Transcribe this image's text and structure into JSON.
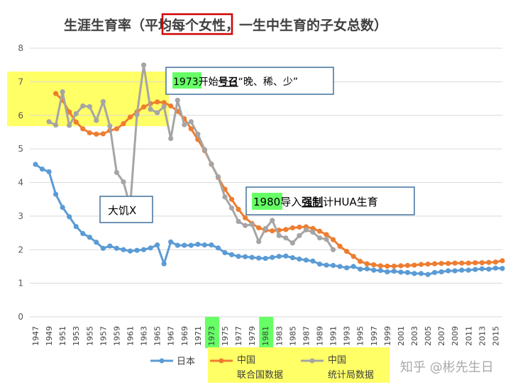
{
  "title": {
    "before": "生涯生育率（",
    "boxed": "平均每个",
    "after": "女性，一生中生育的子女总数）"
  },
  "annotations": {
    "a1973": {
      "year": "1973",
      "before": "开始",
      "bold": "号召",
      "after": "“晚、稀、少”"
    },
    "famine": {
      "text": "大饥X"
    },
    "a1980": {
      "year": "1980",
      "before": "导入",
      "bold": "强制",
      "after": "计HUA生育"
    }
  },
  "highlight_years": [
    "1973",
    "1981"
  ],
  "watermark": "知乎 @彬先生日",
  "colors": {
    "japan": "#5b9bd5",
    "china_un": "#ed7d31",
    "china_stats": "#a5a5a5",
    "highlight_yellow": "#ffff66",
    "highlight_green": "#66ff66",
    "box_red": "#d00000",
    "box_border": "#41719c"
  },
  "chart_data": {
    "type": "line",
    "title": "生涯生育率（平均每个女性，一生中生育的子女总数）",
    "xlabel": "",
    "ylabel": "",
    "ylim": [
      0,
      8
    ],
    "y_ticks": [
      0,
      1,
      2,
      3,
      4,
      5,
      6,
      7,
      8
    ],
    "x_range": [
      1947,
      2016
    ],
    "x_tick_labels": [
      "1947",
      "1949",
      "1951",
      "1953",
      "1955",
      "1957",
      "1959",
      "1961",
      "1963",
      "1965",
      "1967",
      "1969",
      "1971",
      "1973",
      "1975",
      "1977",
      "1979",
      "1981",
      "1983",
      "1985",
      "1987",
      "1989",
      "1991",
      "1993",
      "1995",
      "1997",
      "1999",
      "2001",
      "2003",
      "2005",
      "2007",
      "2009",
      "2011",
      "2013",
      "2015"
    ],
    "grid": true,
    "legend_position": "bottom",
    "series": [
      {
        "name": "日本",
        "color": "#5b9bd5",
        "x": [
          1947,
          1948,
          1949,
          1950,
          1951,
          1952,
          1953,
          1954,
          1955,
          1956,
          1957,
          1958,
          1959,
          1960,
          1961,
          1962,
          1963,
          1964,
          1965,
          1966,
          1967,
          1968,
          1969,
          1970,
          1971,
          1972,
          1973,
          1974,
          1975,
          1976,
          1977,
          1978,
          1979,
          1980,
          1981,
          1982,
          1983,
          1984,
          1985,
          1986,
          1987,
          1988,
          1989,
          1990,
          1991,
          1992,
          1993,
          1994,
          1995,
          1996,
          1997,
          1998,
          1999,
          2000,
          2001,
          2002,
          2003,
          2004,
          2005,
          2006,
          2007,
          2008,
          2009,
          2010,
          2011,
          2012,
          2013,
          2014,
          2015,
          2016
        ],
        "values": [
          4.54,
          4.4,
          4.32,
          3.65,
          3.26,
          2.98,
          2.69,
          2.48,
          2.37,
          2.22,
          2.04,
          2.11,
          2.04,
          2.0,
          1.96,
          1.98,
          2.0,
          2.05,
          2.14,
          1.58,
          2.23,
          2.13,
          2.13,
          2.13,
          2.16,
          2.14,
          2.14,
          2.05,
          1.91,
          1.85,
          1.8,
          1.79,
          1.77,
          1.75,
          1.74,
          1.77,
          1.8,
          1.81,
          1.76,
          1.72,
          1.69,
          1.66,
          1.57,
          1.54,
          1.53,
          1.5,
          1.46,
          1.5,
          1.42,
          1.43,
          1.39,
          1.38,
          1.34,
          1.36,
          1.33,
          1.32,
          1.29,
          1.29,
          1.26,
          1.32,
          1.34,
          1.37,
          1.37,
          1.39,
          1.39,
          1.41,
          1.43,
          1.42,
          1.45,
          1.44
        ]
      },
      {
        "name": "中国 联合国数据",
        "color": "#ed7d31",
        "x": [
          1950,
          1951,
          1952,
          1953,
          1954,
          1955,
          1956,
          1957,
          1958,
          1959,
          1960,
          1961,
          1962,
          1963,
          1964,
          1965,
          1966,
          1967,
          1968,
          1969,
          1970,
          1971,
          1972,
          1973,
          1974,
          1975,
          1976,
          1977,
          1978,
          1979,
          1980,
          1981,
          1982,
          1983,
          1984,
          1985,
          1986,
          1987,
          1988,
          1989,
          1990,
          1991,
          1992,
          1993,
          1994,
          1995,
          1996,
          1997,
          1998,
          1999,
          2000,
          2001,
          2002,
          2003,
          2004,
          2005,
          2006,
          2007,
          2008,
          2009,
          2010,
          2011,
          2012,
          2013,
          2014,
          2015,
          2016
        ],
        "values": [
          6.65,
          6.45,
          6.1,
          5.8,
          5.6,
          5.48,
          5.44,
          5.45,
          5.55,
          5.6,
          5.75,
          5.95,
          6.1,
          6.25,
          6.35,
          6.4,
          6.38,
          6.28,
          6.12,
          5.9,
          5.6,
          5.28,
          4.95,
          4.55,
          4.15,
          3.8,
          3.5,
          3.2,
          2.95,
          2.78,
          2.65,
          2.58,
          2.56,
          2.58,
          2.6,
          2.65,
          2.67,
          2.68,
          2.63,
          2.55,
          2.45,
          2.3,
          2.1,
          1.95,
          1.8,
          1.65,
          1.58,
          1.55,
          1.52,
          1.51,
          1.51,
          1.52,
          1.53,
          1.54,
          1.56,
          1.57,
          1.58,
          1.59,
          1.59,
          1.6,
          1.6,
          1.6,
          1.61,
          1.61,
          1.62,
          1.63,
          1.67
        ]
      },
      {
        "name": "中国 统计局数据",
        "color": "#a5a5a5",
        "x": [
          1949,
          1950,
          1951,
          1952,
          1953,
          1954,
          1955,
          1956,
          1957,
          1958,
          1959,
          1960,
          1961,
          1962,
          1963,
          1964,
          1965,
          1966,
          1967,
          1968,
          1969,
          1970,
          1971,
          1972,
          1973,
          1974,
          1975,
          1976,
          1977,
          1978,
          1979,
          1980,
          1981,
          1982,
          1983,
          1984,
          1985,
          1986,
          1987,
          1988,
          1989,
          1990,
          1991
        ],
        "values": [
          5.81,
          5.71,
          6.7,
          5.7,
          6.05,
          6.28,
          6.26,
          5.85,
          6.41,
          5.68,
          4.3,
          4.02,
          3.29,
          6.02,
          7.5,
          6.18,
          6.08,
          6.26,
          5.31,
          6.45,
          5.72,
          5.81,
          5.44,
          4.98,
          4.54,
          4.17,
          3.57,
          3.24,
          2.84,
          2.72,
          2.75,
          2.24,
          2.63,
          2.87,
          2.42,
          2.35,
          2.2,
          2.42,
          2.59,
          2.52,
          2.35,
          2.31,
          2.0
        ]
      }
    ]
  }
}
